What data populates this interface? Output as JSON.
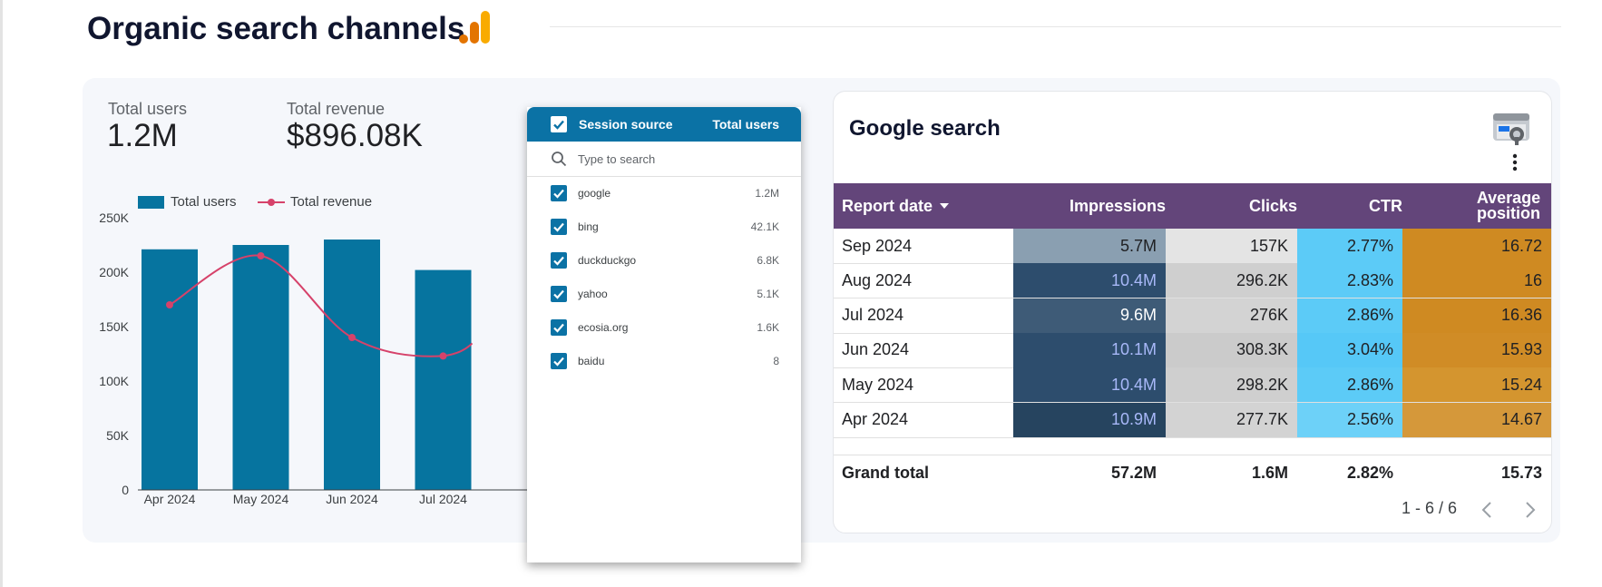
{
  "page": {
    "title": "Organic search channels"
  },
  "kpis": [
    {
      "label": "Total users",
      "value": "1.2M"
    },
    {
      "label": "Total revenue",
      "value": "$896.08K"
    }
  ],
  "chart_data": {
    "type": "bar+line",
    "legend": [
      "Total users",
      "Total revenue"
    ],
    "legend_position": "top-left",
    "categories": [
      "Apr 2024",
      "May 2024",
      "Jun 2024",
      "Jul 2024"
    ],
    "y_ticks": [
      "0",
      "50K",
      "100K",
      "150K",
      "200K",
      "250K"
    ],
    "ylim": [
      0,
      250000
    ],
    "series": [
      {
        "name": "Total users",
        "type": "bar",
        "values": [
          221000,
          225000,
          230000,
          202000
        ]
      },
      {
        "name": "Total revenue",
        "type": "line",
        "values": [
          170000,
          215000,
          140000,
          123000
        ]
      }
    ],
    "colors": {
      "bar": "#06749f",
      "line": "#d6426a"
    }
  },
  "dropdown": {
    "header": {
      "label": "Session source",
      "metric": "Total users"
    },
    "search_placeholder": "Type to search",
    "items": [
      {
        "name": "google",
        "value": "1.2M"
      },
      {
        "name": "bing",
        "value": "42.1K"
      },
      {
        "name": "duckduckgo",
        "value": "6.8K"
      },
      {
        "name": "yahoo",
        "value": "5.1K"
      },
      {
        "name": "ecosia.org",
        "value": "1.6K"
      },
      {
        "name": "baidu",
        "value": "8"
      }
    ]
  },
  "google_search": {
    "title": "Google search",
    "columns": [
      "Report date",
      "Impressions",
      "Clicks",
      "CTR",
      "Average position"
    ],
    "rows": [
      {
        "date": "Sep 2024",
        "impressions": "5.7M",
        "clicks": "157K",
        "ctr": "2.77%",
        "position": "16.72",
        "colors": [
          "#8a9fb1",
          "#e4e4e4",
          "#5ccbf7",
          "#cf8a22"
        ],
        "imp_text": "#202124"
      },
      {
        "date": "Aug 2024",
        "impressions": "10.4M",
        "clicks": "296.2K",
        "ctr": "2.83%",
        "position": "16",
        "colors": [
          "#2d4d6d",
          "#cfcfcf",
          "#5ccbf7",
          "#cf8a22"
        ],
        "imp_text": "#a8b8f8"
      },
      {
        "date": "Jul 2024",
        "impressions": "9.6M",
        "clicks": "276K",
        "ctr": "2.86%",
        "position": "16.36",
        "colors": [
          "#3e5b77",
          "#d3d3d3",
          "#5ccbf7",
          "#cf8a22"
        ],
        "imp_text": "#ffffff"
      },
      {
        "date": "Jun 2024",
        "impressions": "10.1M",
        "clicks": "308.3K",
        "ctr": "3.04%",
        "position": "15.93",
        "colors": [
          "#2d4d6d",
          "#cbcbcb",
          "#56c8f7",
          "#d08c26"
        ],
        "imp_text": "#a8b8f8"
      },
      {
        "date": "May 2024",
        "impressions": "10.4M",
        "clicks": "298.2K",
        "ctr": "2.86%",
        "position": "15.24",
        "colors": [
          "#2d4d6d",
          "#cfcfcf",
          "#5ccbf7",
          "#d4952f"
        ],
        "imp_text": "#a8b8f8"
      },
      {
        "date": "Apr 2024",
        "impressions": "10.9M",
        "clicks": "277.7K",
        "ctr": "2.56%",
        "position": "14.67",
        "colors": [
          "#26445f",
          "#d3d3d3",
          "#6dd1f8",
          "#d5983a"
        ],
        "imp_text": "#a8b8f8"
      }
    ],
    "grand_total": {
      "label": "Grand total",
      "impressions": "57.2M",
      "clicks": "1.6M",
      "ctr": "2.82%",
      "position": "15.73"
    },
    "pager": "1 - 6 / 6"
  },
  "colors": {
    "accent": "#0b72a5",
    "table_header": "#63457a",
    "title": "#10162f"
  },
  "icons": [
    "bar-chart-icon",
    "search-console-icon",
    "more-vert-icon",
    "sort-down-icon",
    "search-icon",
    "checkbox-icon",
    "chevron-left-icon",
    "chevron-right-icon"
  ]
}
